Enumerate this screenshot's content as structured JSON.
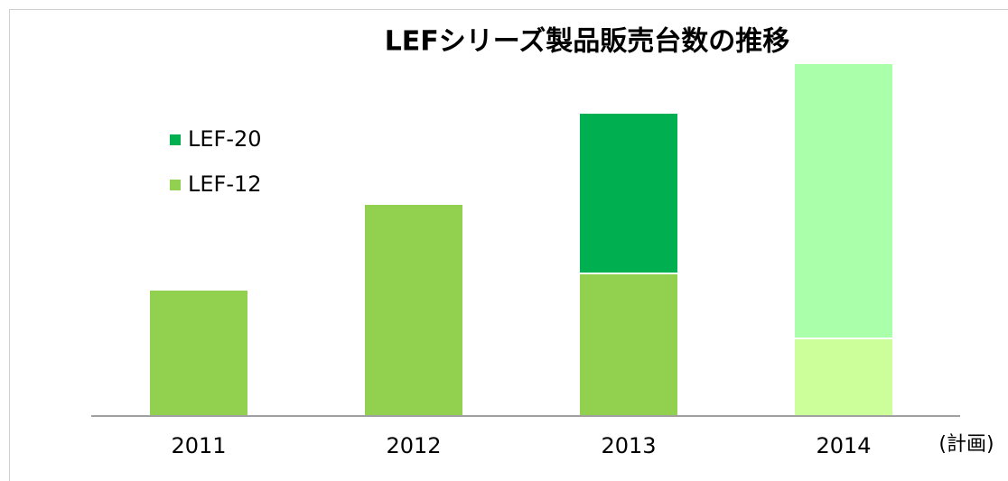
{
  "chart_data": {
    "type": "stacked_bar",
    "title": "LEFシリーズ製品販売台数の推移",
    "categories": [
      "2011",
      "2012",
      "2013",
      "2014"
    ],
    "annotation": "(計画)",
    "series": [
      {
        "name": "LEF-12",
        "color": "#92d050",
        "colors": [
          "#92d050",
          "#92d050",
          "#92d050",
          "#ccff99"
        ],
        "values": [
          140,
          235,
          158,
          86
        ]
      },
      {
        "name": "LEF-20",
        "color": "#00b050",
        "colors": [
          "#00b050",
          "#00b050",
          "#00b050",
          "#aaffaa"
        ],
        "values": [
          null,
          null,
          178,
          305
        ]
      }
    ],
    "ylim": [
      0,
      400
    ],
    "legend": "upper left"
  }
}
